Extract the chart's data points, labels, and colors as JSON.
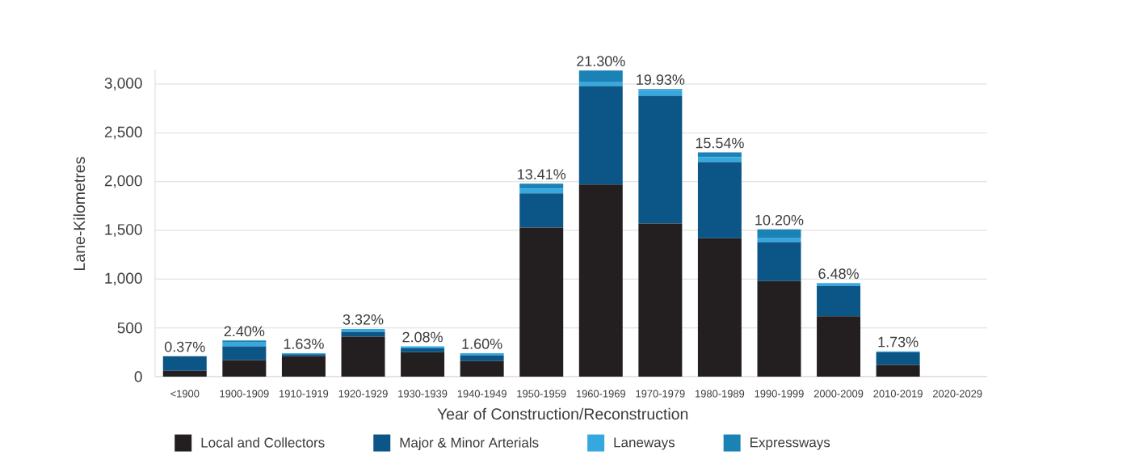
{
  "chart_data": {
    "type": "bar",
    "stacked": true,
    "xlabel": "Year of Construction/Reconstruction",
    "ylabel": "Lane-Kilometres",
    "categories": [
      "<1900",
      "1900-1909",
      "1910-1919",
      "1920-1929",
      "1930-1939",
      "1940-1949",
      "1950-1959",
      "1960-1969",
      "1970-1979",
      "1980-1989",
      "1990-1999",
      "2000-2009",
      "2010-2019",
      "2020-2029"
    ],
    "series": [
      {
        "name": "Local and Collectors",
        "color": "#231f20",
        "values": [
          60,
          170,
          210,
          410,
          250,
          160,
          1530,
          1970,
          1570,
          1420,
          980,
          620,
          120,
          0
        ]
      },
      {
        "name": "Major & Minor Arterials",
        "color": "#0b5686",
        "values": [
          150,
          140,
          20,
          50,
          40,
          60,
          350,
          1010,
          1310,
          780,
          400,
          310,
          130,
          0
        ]
      },
      {
        "name": "Laneways",
        "color": "#35a8e0",
        "values": [
          0,
          40,
          10,
          30,
          20,
          20,
          50,
          40,
          60,
          50,
          40,
          30,
          10,
          0
        ]
      },
      {
        "name": "Expressways",
        "color": "#1a82b5",
        "values": [
          0,
          20,
          0,
          0,
          0,
          0,
          50,
          120,
          10,
          50,
          90,
          0,
          0,
          0
        ]
      }
    ],
    "annotations": [
      {
        "text": "0.37%",
        "x": "<1900",
        "y": 210
      },
      {
        "text": "2.40%",
        "x": "1900-1909",
        "y": 370
      },
      {
        "text": "1.63%",
        "x": "1910-1919",
        "y": 240
      },
      {
        "text": "3.32%",
        "x": "1920-1929",
        "y": 490
      },
      {
        "text": "2.08%",
        "x": "1930-1939",
        "y": 310
      },
      {
        "text": "1.60%",
        "x": "1940-1949",
        "y": 240
      },
      {
        "text": "13.41%",
        "x": "1950-1959",
        "y": 1980
      },
      {
        "text": "21.30%",
        "x": "1960-1969",
        "y": 3140
      },
      {
        "text": "19.93%",
        "x": "1970-1979",
        "y": 2950
      },
      {
        "text": "15.54%",
        "x": "1980-1989",
        "y": 2300
      },
      {
        "text": "10.20%",
        "x": "1990-1999",
        "y": 1510
      },
      {
        "text": "6.48%",
        "x": "2000-2009",
        "y": 960
      },
      {
        "text": "1.73%",
        "x": "2010-2019",
        "y": 260
      }
    ],
    "ylim": [
      0,
      3150
    ],
    "yticks": [
      0,
      500,
      {
        "value": 1000,
        "label": "1,000"
      },
      {
        "value": 1500,
        "label": "1,500"
      },
      {
        "value": 2000,
        "label": "2,000"
      },
      {
        "value": 2500,
        "label": "2,500"
      },
      {
        "value": 3000,
        "label": "3,000"
      }
    ],
    "grid": "y",
    "legend": "bottom"
  }
}
